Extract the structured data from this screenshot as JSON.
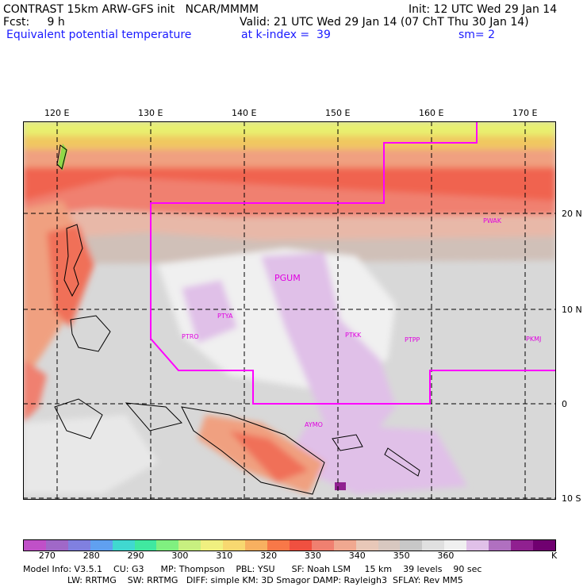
{
  "header": {
    "line1_left": "CONTRAST 15km ARW-GFS init   NCAR/MMMM",
    "line1_right": "Init: 12 UTC Wed 29 Jan 14",
    "line2_left": "Fcst:     9 h",
    "line2_right": "Valid: 21 UTC Wed 29 Jan 14 (07 ChT Thu 30 Jan 14)",
    "line3_left": "Equivalent potential temperature",
    "line3_mid": "at k-index =  39",
    "line3_right": "sm= 2"
  },
  "lon_labels": [
    "120 E",
    "130 E",
    "140 E",
    "150 E",
    "160 E",
    "170 E"
  ],
  "lat_labels": [
    "20 N",
    "10 N",
    "0",
    "10 S"
  ],
  "stations": [
    "PWAK",
    "PGUM",
    "PTYA",
    "PTRO",
    "PTKK",
    "PTPP",
    "PKMJ",
    "AYMO"
  ],
  "colorbar": {
    "colors": [
      "#c050c8",
      "#a068c8",
      "#8080e0",
      "#60a0f0",
      "#40d8d0",
      "#40e8a0",
      "#80f080",
      "#c8f080",
      "#f0f080",
      "#f8d870",
      "#f8b060",
      "#f87848",
      "#f05040",
      "#f08070",
      "#f0a890",
      "#e8c8b8",
      "#d8c8c0",
      "#c8c8c8",
      "#e0e0e0",
      "#f0f0f0",
      "#e0c0e8",
      "#b070c0",
      "#902090",
      "#700070"
    ],
    "labels": [
      "270",
      "280",
      "290",
      "300",
      "310",
      "320",
      "330",
      "340",
      "350",
      "360",
      "K"
    ]
  },
  "footer": {
    "line1": "Model Info: V3.5.1    CU: G3      MP: Thompson    PBL: YSU      SF: Noah LSM     15 km    39 levels    90 sec",
    "line2": "                LW: RRTMG    SW: RRTMG   DIFF: simple KM: 3D Smagor DAMP: Rayleigh3  SFLAY: Rev MM5"
  }
}
